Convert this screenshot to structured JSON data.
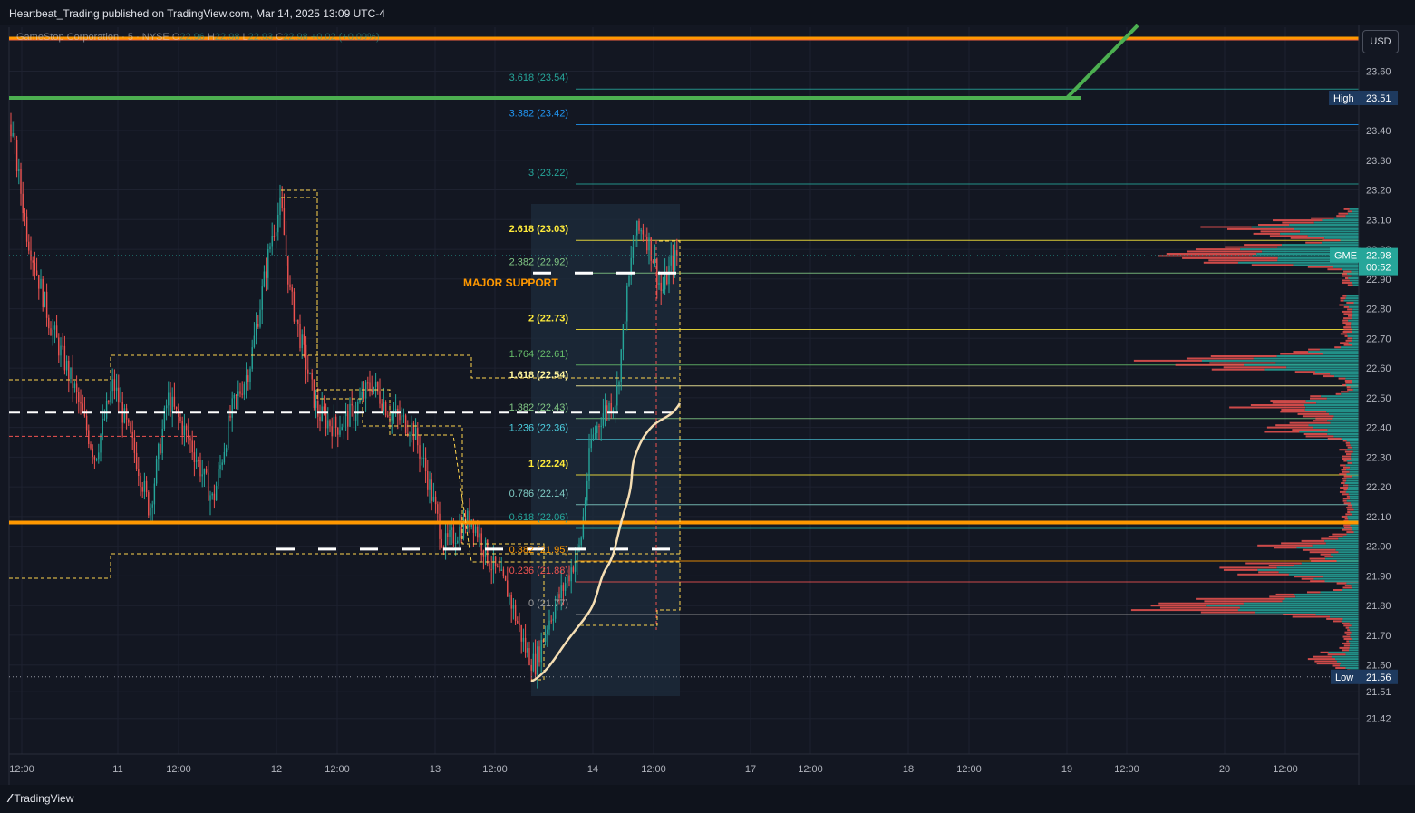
{
  "header": {
    "publisher": "Heartbeat_Trading published on TradingView.com, Mar 14, 2025 13:09 UTC-4"
  },
  "legend": {
    "symbol": "GameStop Corporation · 5 · NYSE",
    "open_label": "O",
    "open": "22.96",
    "high_label": "H",
    "high": "22.98",
    "low_label": "L",
    "low": "22.93",
    "close_label": "C",
    "close": "22.98",
    "change": "+0.02 (+0.09%)"
  },
  "currency_button": "USD",
  "footer": {
    "logo_text": "TradingView",
    "logo_icon": "tradingview-logo-icon"
  },
  "colors": {
    "background": "#131722",
    "up": "#26a69a",
    "down": "#ef5350",
    "support": "#ff9800",
    "trend": "#4caf50",
    "vwap": "#f5deb3"
  },
  "chart_data": {
    "type": "candlestick",
    "symbol": "GME",
    "interval": "5",
    "ylim": [
      21.4,
      23.75
    ],
    "y_ticks": [
      "23.60",
      "23.51",
      "23.40",
      "23.30",
      "23.20",
      "23.10",
      "23.00",
      "22.90",
      "22.80",
      "22.70",
      "22.60",
      "22.50",
      "22.40",
      "22.30",
      "22.20",
      "22.10",
      "22.00",
      "21.90",
      "21.80",
      "21.70",
      "21.60",
      "21.56",
      "21.51",
      "21.42"
    ],
    "x_ticks": [
      "12:00",
      "11",
      "12:00",
      "12",
      "12:00",
      "13",
      "12:00",
      "14",
      "12:00",
      "17",
      "12:00",
      "18",
      "12:00",
      "19",
      "12:00",
      "20",
      "12:00"
    ],
    "price_labels": {
      "high": {
        "label": "High",
        "value": "23.51"
      },
      "low": {
        "label": "Low",
        "value": "21.56"
      },
      "last": {
        "label": "GME",
        "value": "22.98",
        "countdown": "00:52"
      }
    },
    "fib_levels": [
      {
        "ratio": "3.618",
        "price": "23.54",
        "text": "3.618 (23.54)",
        "color": "#26a69a"
      },
      {
        "ratio": "3.382",
        "price": "23.42",
        "text": "3.382 (23.42)",
        "color": "#2196f3"
      },
      {
        "ratio": "3",
        "price": "23.22",
        "text": "3 (23.22)",
        "color": "#26a69a"
      },
      {
        "ratio": "2.618",
        "price": "23.03",
        "text": "2.618 (23.03)",
        "color": "#ffeb3b"
      },
      {
        "ratio": "2.382",
        "price": "22.92",
        "text": "2.382 (22.92)",
        "color": "#81c784"
      },
      {
        "ratio": "2",
        "price": "22.73",
        "text": "2 (22.73)",
        "color": "#ffeb3b"
      },
      {
        "ratio": "1.764",
        "price": "22.61",
        "text": "1.764 (22.61)",
        "color": "#66bb6a"
      },
      {
        "ratio": "1.618",
        "price": "22.54",
        "text": "1.618 (22.54)",
        "color": "#fff59d"
      },
      {
        "ratio": "1.382",
        "price": "22.43",
        "text": "1.382 (22.43)",
        "color": "#81c784"
      },
      {
        "ratio": "1.236",
        "price": "22.36",
        "text": "1.236 (22.36)",
        "color": "#4dd0e1"
      },
      {
        "ratio": "1",
        "price": "22.24",
        "text": "1 (22.24)",
        "color": "#ffeb3b"
      },
      {
        "ratio": "0.786",
        "price": "22.14",
        "text": "0.786 (22.14)",
        "color": "#80cbc4"
      },
      {
        "ratio": "0.618",
        "price": "22.06",
        "text": "0.618 (22.06)",
        "color": "#26a69a"
      },
      {
        "ratio": "0.382",
        "price": "21.95",
        "text": "0.382 (21.95)",
        "color": "#ff9800"
      },
      {
        "ratio": "0.236",
        "price": "21.88",
        "text": "0.236 (21.88)",
        "color": "#ef5350"
      },
      {
        "ratio": "0",
        "price": "21.77",
        "text": "0 (21.77)",
        "color": "#9e9e9e"
      }
    ],
    "annotations": [
      {
        "text": "MAJOR SUPPORT",
        "color": "#ff9800"
      }
    ],
    "horizontal_levels": [
      {
        "price": 23.71,
        "color": "#ff9800",
        "style": "solid"
      },
      {
        "price": 23.51,
        "color": "#4caf50",
        "style": "solid"
      },
      {
        "price": 22.08,
        "color": "#ff9800",
        "style": "solid"
      },
      {
        "price": 22.45,
        "color": "#ffffff",
        "style": "dashed"
      },
      {
        "price": 22.92,
        "color": "#ffffff",
        "style": "dashed"
      },
      {
        "price": 21.99,
        "color": "#ffffff",
        "style": "dashed"
      }
    ],
    "grid": true
  }
}
